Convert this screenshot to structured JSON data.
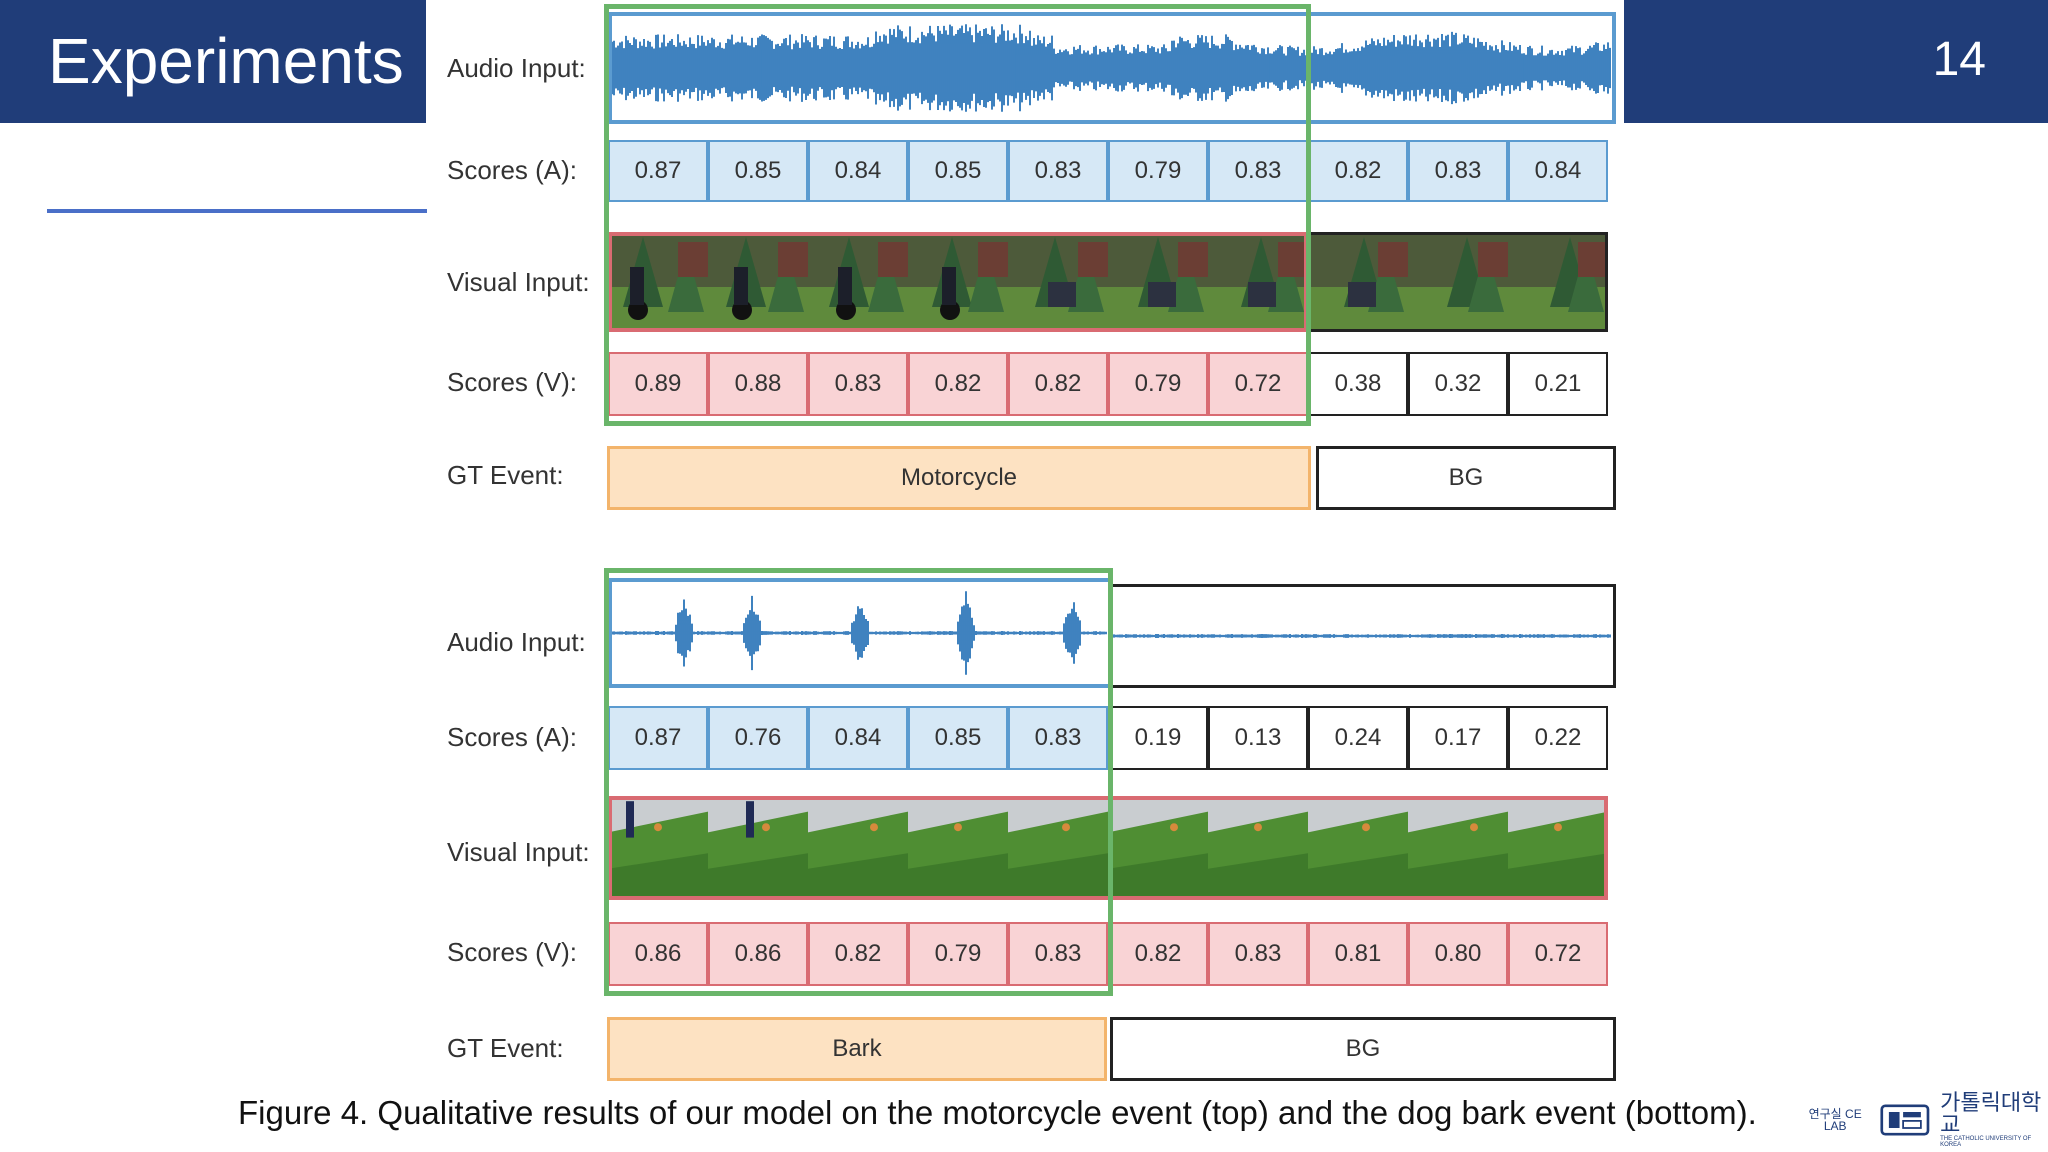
{
  "header": {
    "title": "Experiments",
    "page_number": "14"
  },
  "labels": {
    "audio_input": "Audio Input:",
    "scores_a": "Scores (A):",
    "visual_input": "Visual Input:",
    "scores_v": "Scores (V):",
    "gt_event": "GT Event:"
  },
  "top": {
    "scores_a": [
      "0.87",
      "0.85",
      "0.84",
      "0.85",
      "0.83",
      "0.79",
      "0.83",
      "0.82",
      "0.83",
      "0.84"
    ],
    "scores_v": [
      "0.89",
      "0.88",
      "0.83",
      "0.82",
      "0.82",
      "0.79",
      "0.72",
      "0.38",
      "0.32",
      "0.21"
    ],
    "gt_event": "Motorcycle",
    "gt_bg": "BG"
  },
  "bottom": {
    "scores_a": [
      "0.87",
      "0.76",
      "0.84",
      "0.85",
      "0.83",
      "0.19",
      "0.13",
      "0.24",
      "0.17",
      "0.22"
    ],
    "scores_v": [
      "0.86",
      "0.86",
      "0.82",
      "0.79",
      "0.83",
      "0.82",
      "0.83",
      "0.81",
      "0.80",
      "0.72"
    ],
    "gt_event": "Bark",
    "gt_bg": "BG"
  },
  "caption": "Figure 4. Qualitative results of our model on the motorcycle event (top) and the dog bark event (bottom).",
  "logos": {
    "lab": "연구실 CE LAB",
    "university": "가톨릭대학교",
    "university_en": "THE CATHOLIC UNIVERSITY OF KOREA"
  },
  "colors": {
    "header_bg": "#203d79",
    "green": "#6ab56a",
    "audio_blue": "#2a74b8",
    "score_blue": "#d6e8f6",
    "score_red": "#f9d3d5",
    "gt_orange": "#fde2c2"
  }
}
